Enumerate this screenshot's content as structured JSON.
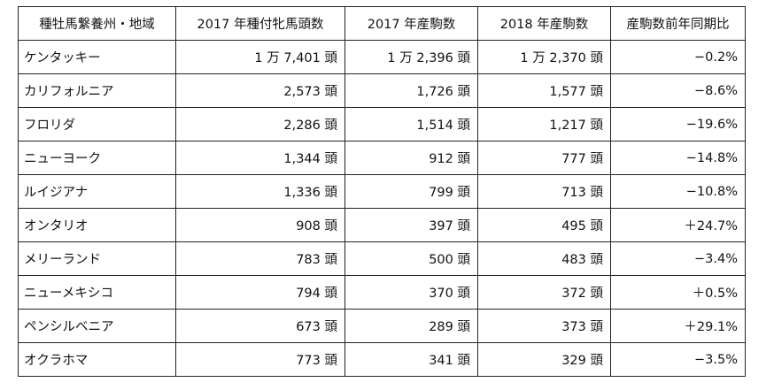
{
  "table": {
    "headers": [
      "種牡馬繋養州・地域",
      "2017 年種付牝馬頭数",
      "2017 年産駒数",
      "2018 年産駒数",
      "産駒数前年同期比"
    ],
    "rows": [
      [
        "ケンタッキー",
        "1 万 7,401 頭",
        "1 万 2,396 頭",
        "1 万 2,370 頭",
        "−0.2%"
      ],
      [
        "カリフォルニア",
        "2,573 頭",
        "1,726 頭",
        "1,577 頭",
        "−8.6%"
      ],
      [
        "フロリダ",
        "2,286 頭",
        "1,514 頭",
        "1,217 頭",
        "−19.6%"
      ],
      [
        "ニューヨーク",
        "1,344 頭",
        "912 頭",
        "777 頭",
        "−14.8%"
      ],
      [
        "ルイジアナ",
        "1,336 頭",
        "799 頭",
        "713 頭",
        "−10.8%"
      ],
      [
        "オンタリオ",
        "908 頭",
        "397 頭",
        "495 頭",
        "＋24.7%"
      ],
      [
        "メリーランド",
        "783 頭",
        "500 頭",
        "483 頭",
        "−3.4%"
      ],
      [
        "ニューメキシコ",
        "794 頭",
        "370 頭",
        "372 頭",
        "＋0.5%"
      ],
      [
        "ペンシルベニア",
        "673 頭",
        "289 頭",
        "373 頭",
        "＋29.1%"
      ],
      [
        "オクラホマ",
        "773 頭",
        "341 頭",
        "329 頭",
        "−3.5%"
      ]
    ]
  }
}
